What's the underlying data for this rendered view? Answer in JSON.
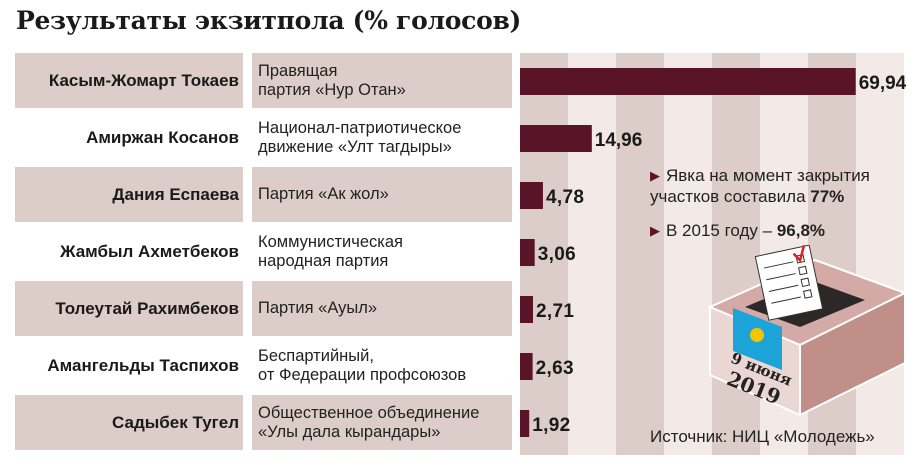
{
  "title": "Результаты экзитпола (% голосов)",
  "chart_data": {
    "type": "bar",
    "orientation": "horizontal",
    "title": "Результаты экзитпола (% голосов)",
    "categories": [
      "Касым-Жомарт Токаев",
      "Амиржан Косанов",
      "Дания Еспаева",
      "Жамбыл Ахметбеков",
      "Толеутай Рахимбеков",
      "Амангельды Таспихов",
      "Садыбек Тугел"
    ],
    "parties": [
      "Правящая\nпартия «Нур Отан»",
      "Национал-патриотическое\nдвижение «Улт тагдыры»",
      "Партия «Ак жол»",
      "Коммунистическая\nнародная партия",
      "Партия «Ауыл»",
      "Беспартийный,\nот Федерации профсоюзов",
      "Общественное объединение\n«Улы дала кырандары»"
    ],
    "values": [
      69.94,
      14.96,
      4.78,
      3.06,
      2.71,
      2.63,
      1.92
    ],
    "labels": [
      "69,94",
      "14,96",
      "4,78",
      "3,06",
      "2,71",
      "2,63",
      "1,92"
    ],
    "xlim": [
      0,
      80
    ],
    "grid": "alternating vertical stripes every 10",
    "colors": {
      "bar": "#5a1428",
      "stripe_dark": "#dccdc8",
      "stripe_light": "#f3eae7"
    }
  },
  "notes": [
    {
      "text": "Явка на момент закрытия участков составила ",
      "bold": "77%"
    },
    {
      "text": "В 2015 году – ",
      "bold": "96,8%"
    }
  ],
  "ballot_box": {
    "date_line1": "9 июня",
    "date_line2": "2019"
  },
  "source": "Источник: НИЦ «Молодежь»"
}
